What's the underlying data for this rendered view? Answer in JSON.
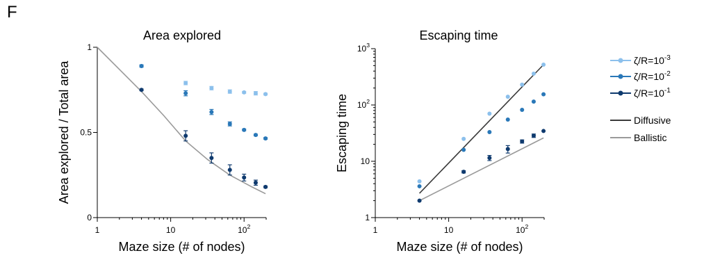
{
  "figure": {
    "panel_label": "F"
  },
  "legend": {
    "items": [
      {
        "label": "ζ/R=10",
        "exp": "-3",
        "color": "#8cc0ec",
        "marker": true
      },
      {
        "label": "ζ/R=10",
        "exp": "-2",
        "color": "#2a78b8",
        "marker": true
      },
      {
        "label": "ζ/R=10",
        "exp": "-1",
        "color": "#0f3a6e",
        "marker": true
      },
      {
        "label": "Diffusive",
        "exp": "",
        "color": "#3a3a3a",
        "marker": false
      },
      {
        "label": "Ballistic",
        "exp": "",
        "color": "#9a9a9a",
        "marker": false
      }
    ]
  },
  "chart_data": [
    {
      "type": "scatter",
      "title": "Area explored",
      "xlabel": "Maze size (# of nodes)",
      "ylabel": "Area explored / Total area",
      "xscale": "log",
      "yscale": "linear",
      "xlim": [
        1,
        200
      ],
      "ylim": [
        0,
        1
      ],
      "xticks": [
        {
          "value": 1,
          "label": "1",
          "exp": ""
        },
        {
          "value": 10,
          "label": "10",
          "exp": ""
        },
        {
          "value": 100,
          "label": "10",
          "exp": "2"
        }
      ],
      "yticks": [
        {
          "value": 0,
          "label": "0"
        },
        {
          "value": 0.5,
          "label": "0.5"
        },
        {
          "value": 1,
          "label": "1"
        }
      ],
      "series": [
        {
          "name": "ζ/R=10-3",
          "color": "#8cc0ec",
          "x": [
            4,
            16,
            36,
            64,
            100,
            144,
            196
          ],
          "y": [
            0.89,
            0.79,
            0.76,
            0.74,
            0.735,
            0.73,
            0.725
          ],
          "err": [
            0.008,
            0.01,
            0.01,
            0.01,
            0.005,
            0.01,
            0.005
          ]
        },
        {
          "name": "ζ/R=10-2",
          "color": "#2a78b8",
          "x": [
            4,
            16,
            36,
            64,
            100,
            144,
            196
          ],
          "y": [
            0.89,
            0.73,
            0.62,
            0.55,
            0.515,
            0.485,
            0.465
          ],
          "err": [
            0.005,
            0.015,
            0.015,
            0.012,
            0.005,
            0.005,
            0.005
          ]
        },
        {
          "name": "ζ/R=10-1",
          "color": "#0f3a6e",
          "x": [
            4,
            16,
            36,
            64,
            100,
            144,
            196
          ],
          "y": [
            0.75,
            0.48,
            0.35,
            0.28,
            0.235,
            0.205,
            0.18
          ],
          "err": [
            0.005,
            0.03,
            0.03,
            0.03,
            0.02,
            0.015,
            0.005
          ]
        }
      ],
      "lines": [
        {
          "name": "Ballistic",
          "color": "#9a9a9a",
          "x": [
            1,
            2,
            4,
            8,
            16,
            32,
            64,
            128,
            196
          ],
          "y": [
            1,
            0.87,
            0.74,
            0.6,
            0.45,
            0.34,
            0.25,
            0.18,
            0.14
          ]
        }
      ]
    },
    {
      "type": "scatter",
      "title": "Escaping time",
      "xlabel": "Maze size (# of nodes)",
      "ylabel": "Escaping time",
      "xscale": "log",
      "yscale": "log",
      "xlim": [
        1,
        200
      ],
      "ylim": [
        1,
        1000
      ],
      "xticks": [
        {
          "value": 1,
          "label": "1",
          "exp": ""
        },
        {
          "value": 10,
          "label": "10",
          "exp": ""
        },
        {
          "value": 100,
          "label": "10",
          "exp": "2"
        }
      ],
      "yticks": [
        {
          "value": 1,
          "label": "1",
          "exp": ""
        },
        {
          "value": 10,
          "label": "10",
          "exp": ""
        },
        {
          "value": 100,
          "label": "10",
          "exp": "2"
        },
        {
          "value": 1000,
          "label": "10",
          "exp": "3"
        }
      ],
      "series": [
        {
          "name": "ζ/R=10-3",
          "color": "#8cc0ec",
          "x": [
            4,
            16,
            36,
            64,
            100,
            144,
            196
          ],
          "y": [
            4.4,
            25,
            70,
            140,
            230,
            360,
            520
          ],
          "err": [
            0,
            0,
            0,
            0,
            0,
            0,
            0
          ]
        },
        {
          "name": "ζ/R=10-2",
          "color": "#2a78b8",
          "x": [
            4,
            16,
            36,
            64,
            100,
            144,
            196
          ],
          "y": [
            3.6,
            16,
            33,
            55,
            82,
            115,
            155
          ],
          "err": [
            0,
            0,
            0,
            0,
            0,
            0,
            0
          ]
        },
        {
          "name": "ζ/R=10-1",
          "color": "#0f3a6e",
          "x": [
            4,
            16,
            36,
            64,
            100,
            144,
            196
          ],
          "y": [
            2.0,
            6.5,
            11.5,
            16.5,
            22.5,
            28.5,
            34.5
          ],
          "err": [
            0,
            0.3,
            1.2,
            2.5,
            1.5,
            2,
            0
          ]
        }
      ],
      "lines": [
        {
          "name": "Diffusive",
          "color": "#3a3a3a",
          "x": [
            4,
            196
          ],
          "y": [
            2.7,
            520
          ]
        },
        {
          "name": "Ballistic",
          "color": "#9a9a9a",
          "x": [
            4,
            196
          ],
          "y": [
            2.0,
            26
          ]
        }
      ]
    }
  ]
}
